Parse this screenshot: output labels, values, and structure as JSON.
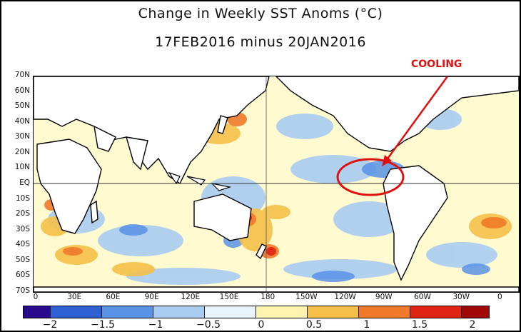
{
  "title_line1": "Change in Weekly SST Anoms (°C)",
  "title_line2": "17FEB2016 minus 20JAN2016",
  "annotation": "COOLING",
  "annotation_color": "#e01010",
  "lat_labels": [
    "70N",
    "60N",
    "50N",
    "40N",
    "30N",
    "20N",
    "10N",
    "EQ",
    "10S",
    "20S",
    "30S",
    "40S",
    "50S",
    "60S",
    "70S"
  ],
  "lon_labels": [
    "0",
    "30E",
    "60E",
    "90E",
    "120E",
    "150E",
    "180",
    "150W",
    "120W",
    "90W",
    "60W",
    "30W",
    "0"
  ],
  "colorbar": {
    "labels": [
      "−2",
      "−1.5",
      "−1",
      "−0.5",
      "0",
      "0.5",
      "1",
      "1.5",
      "2"
    ],
    "colors": [
      "#2a0a8c",
      "#2f5fd0",
      "#5a92e6",
      "#a9ccf2",
      "#e8f4fb",
      "#fff3b0",
      "#f5c04a",
      "#f07a2a",
      "#e02414",
      "#a00808"
    ]
  }
}
